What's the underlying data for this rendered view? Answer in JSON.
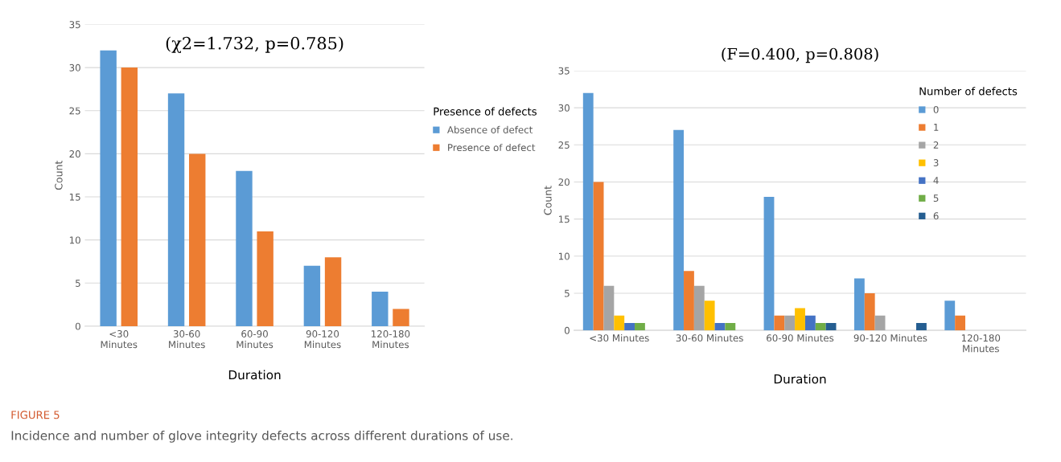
{
  "chart_data": [
    {
      "type": "bar",
      "title": "(χ2=1.732, p=0.785)",
      "xlabel": "Duration",
      "ylabel": "Count",
      "legend_title": "Presence of defects",
      "categories": [
        "<30 Minutes",
        "30-60 Minutes",
        "60-90 Minutes",
        "90-120 Minutes",
        "120-180 Minutes"
      ],
      "series": [
        {
          "name": "Absence of defect",
          "color": "#5b9bd5",
          "values": [
            32,
            27,
            18,
            7,
            4
          ]
        },
        {
          "name": "Presence of defect",
          "color": "#ed7d31",
          "values": [
            30,
            20,
            11,
            8,
            2
          ]
        }
      ],
      "ylim": [
        0,
        35
      ],
      "yticks": [
        0,
        5,
        10,
        15,
        20,
        25,
        30,
        35
      ],
      "grid": "y",
      "legend": "right",
      "annotations": [
        "FIGURE 5",
        "Incidence and number of glove integrity defects across different durations of use."
      ]
    },
    {
      "type": "bar",
      "title": "(F=0.400, p=0.808)",
      "xlabel": "Duration",
      "ylabel": "Count",
      "legend_title": "Number of defects",
      "categories": [
        "<30 Minutes",
        "30-60 Minutes",
        "60-90 Minutes",
        "90-120 Minutes",
        "120-180 Minutes"
      ],
      "series": [
        {
          "name": "0",
          "color": "#5b9bd5",
          "values": [
            32,
            27,
            18,
            7,
            4
          ]
        },
        {
          "name": "1",
          "color": "#ed7d31",
          "values": [
            20,
            8,
            2,
            5,
            2
          ]
        },
        {
          "name": "2",
          "color": "#a5a5a5",
          "values": [
            6,
            6,
            2,
            2,
            0
          ]
        },
        {
          "name": "3",
          "color": "#ffc000",
          "values": [
            2,
            4,
            3,
            0,
            0
          ]
        },
        {
          "name": "4",
          "color": "#4472c4",
          "values": [
            1,
            1,
            2,
            0,
            0
          ]
        },
        {
          "name": "5",
          "color": "#70ad47",
          "values": [
            1,
            1,
            1,
            0,
            0
          ]
        },
        {
          "name": "6",
          "color": "#255e91",
          "values": [
            0,
            0,
            1,
            1,
            0
          ]
        }
      ],
      "ylim": [
        0,
        35
      ],
      "yticks": [
        0,
        5,
        10,
        15,
        20,
        25,
        30,
        35
      ],
      "grid": "y",
      "legend": "top right"
    }
  ]
}
